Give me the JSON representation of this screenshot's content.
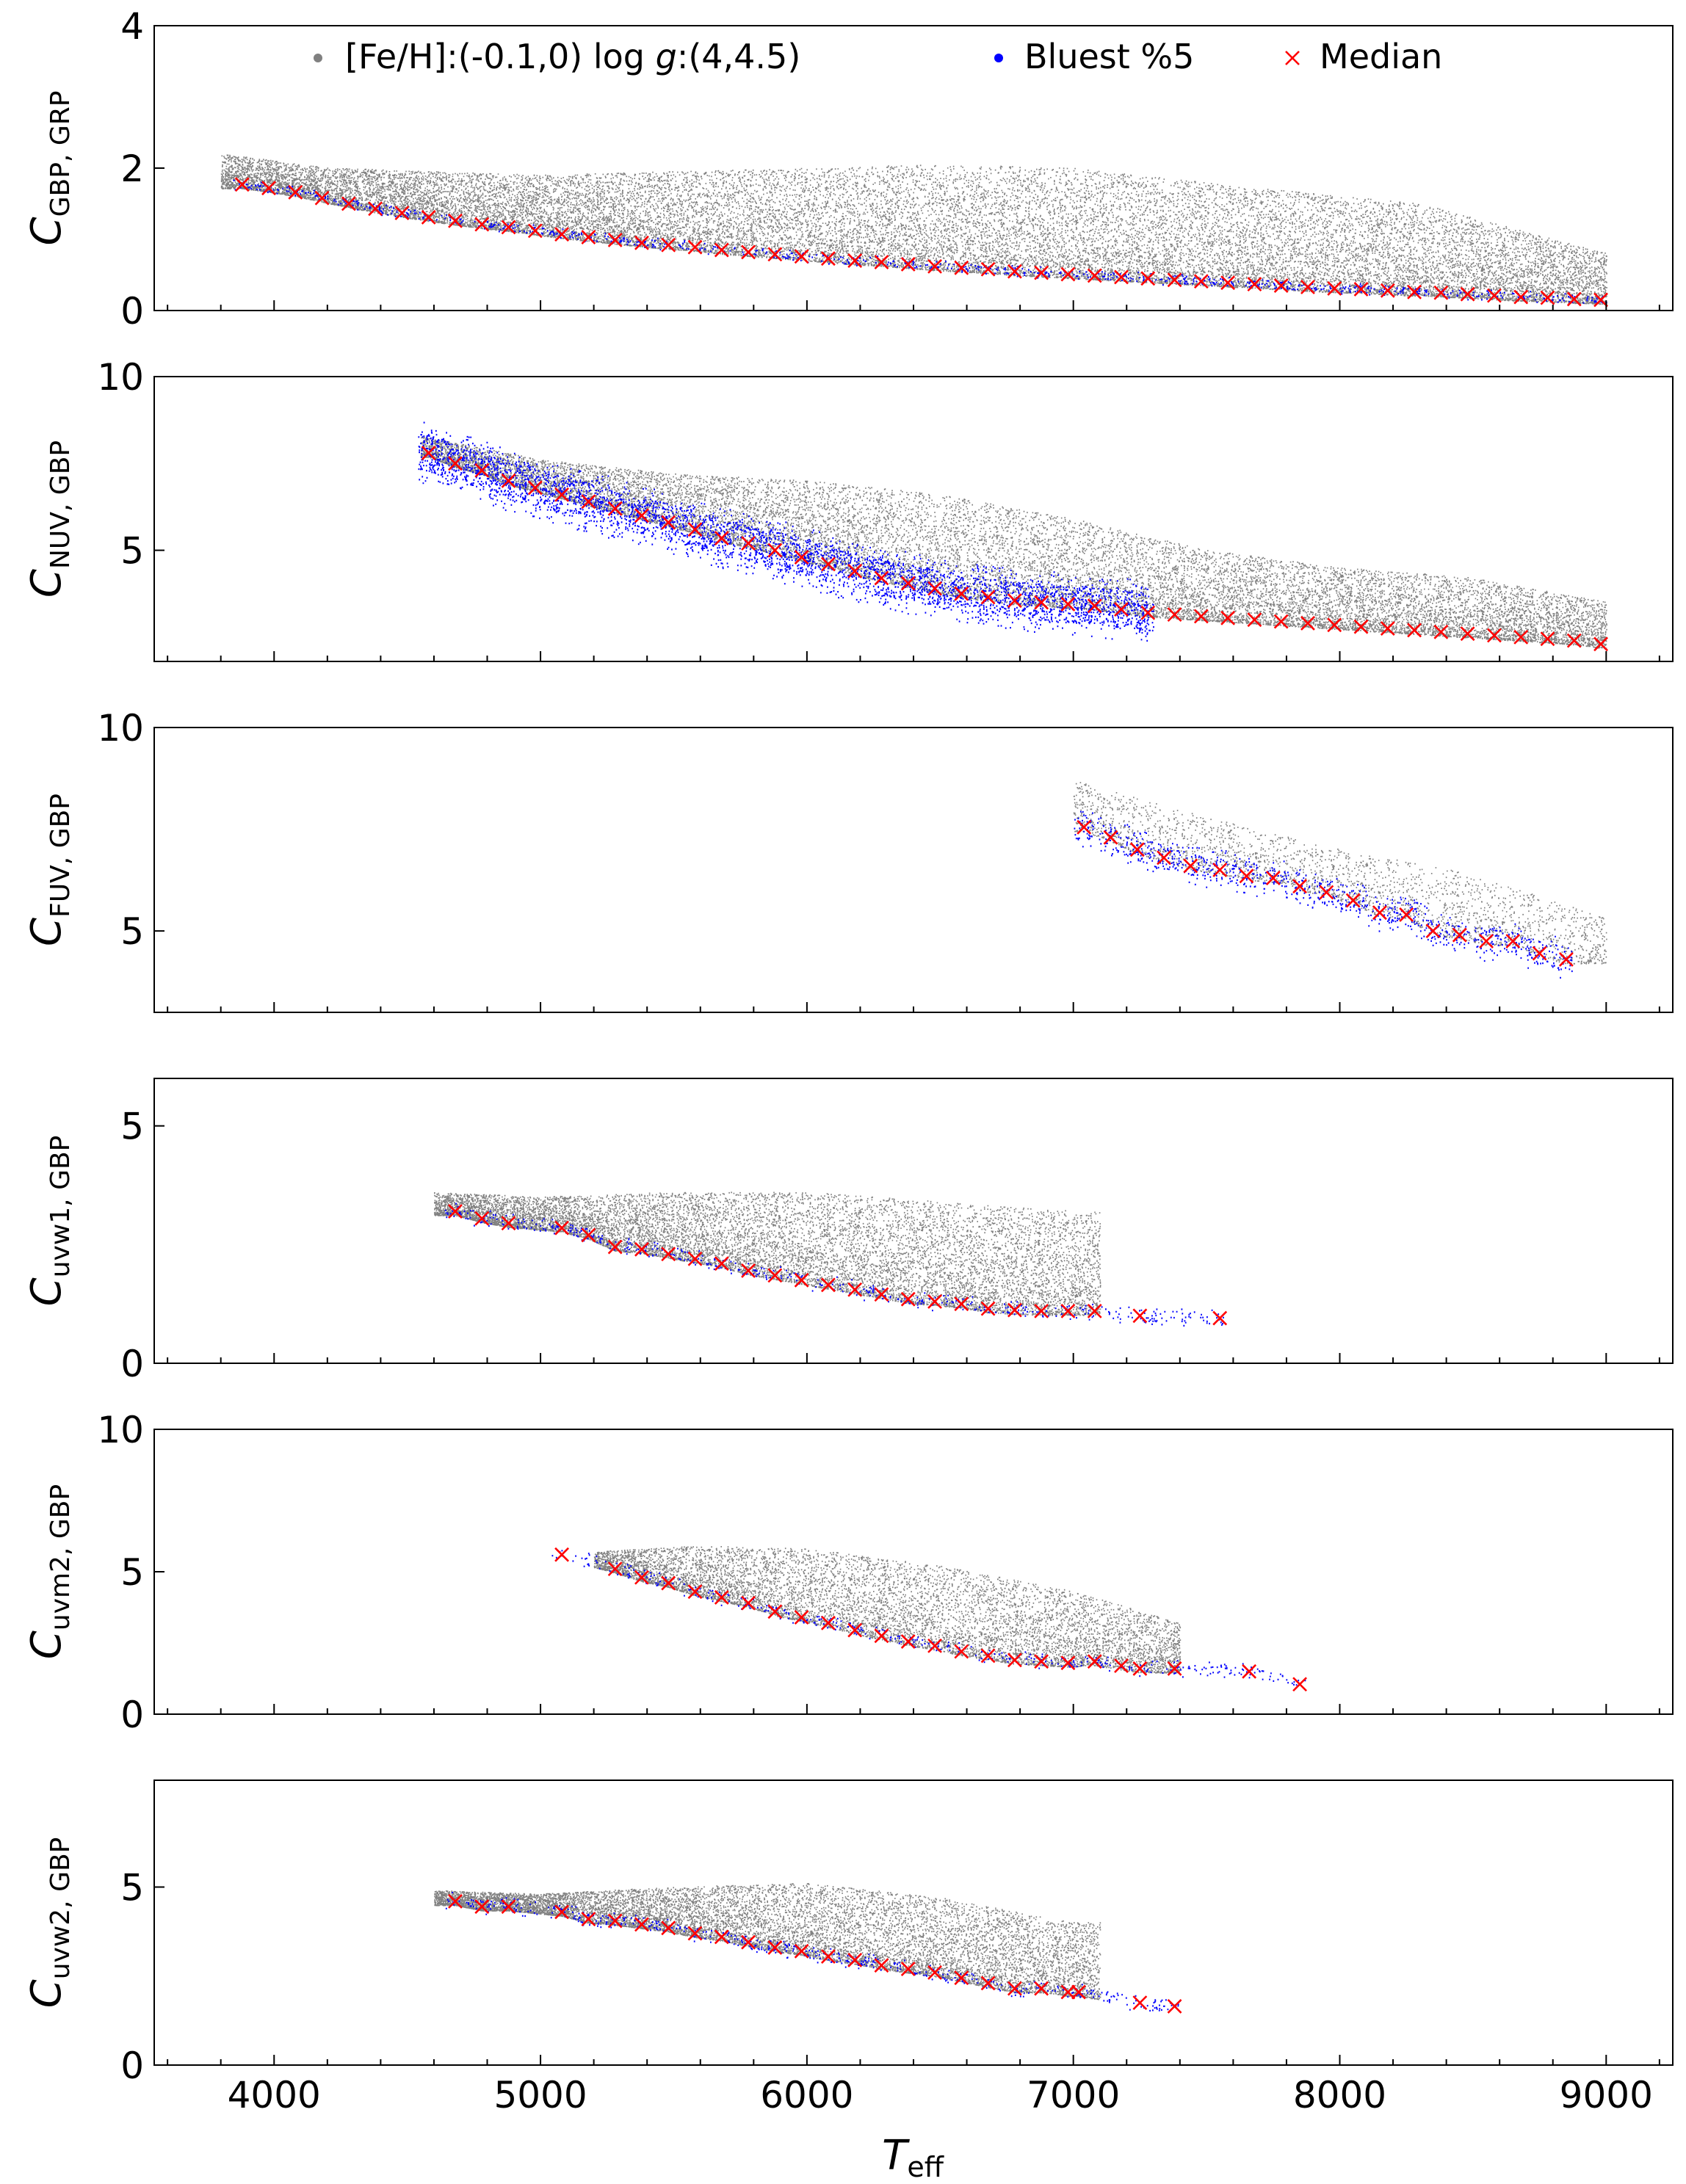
{
  "chart_data": {
    "type": "scatter",
    "xlabel": "T",
    "xlabel_sub": "eff",
    "xlim": [
      3550,
      9250
    ],
    "xticks": [
      4000,
      5000,
      6000,
      7000,
      8000,
      9000
    ],
    "xtick_labels": [
      "4000",
      "5000",
      "6000",
      "7000",
      "8000",
      "9000"
    ],
    "colors": {
      "all": "#808080",
      "bluest": "#0000ff",
      "median": "#ff0000"
    },
    "legend": {
      "placement": "top",
      "entries": [
        {
          "label_pre": "[Fe/H]:(-0.1,0) log ",
          "label_italic": "g",
          "label_post": ":(4,4.5)",
          "marker": "dot",
          "color": "#808080"
        },
        {
          "label": "Bluest %5",
          "marker": "dot",
          "color": "#0000ff"
        },
        {
          "label": "Median",
          "marker": "x",
          "color": "#ff0000"
        }
      ]
    },
    "panels": [
      {
        "ylabel_main": "C",
        "ylabel_sub": "GBP, GRP",
        "ylim": [
          0,
          4
        ],
        "yticks": [
          0,
          2,
          4
        ],
        "ytick_labels": [
          "0",
          "2",
          "4"
        ],
        "median": {
          "x": [
            3880,
            3980,
            4080,
            4180,
            4280,
            4380,
            4480,
            4580,
            4680,
            4780,
            4880,
            4980,
            5080,
            5180,
            5280,
            5380,
            5480,
            5580,
            5680,
            5780,
            5880,
            5980,
            6080,
            6180,
            6280,
            6380,
            6480,
            6580,
            6680,
            6780,
            6880,
            6980,
            7080,
            7180,
            7280,
            7380,
            7480,
            7580,
            7680,
            7780,
            7880,
            7980,
            8080,
            8180,
            8280,
            8380,
            8480,
            8580,
            8680,
            8780,
            8880,
            8980
          ],
          "y": [
            1.77,
            1.72,
            1.66,
            1.58,
            1.5,
            1.43,
            1.37,
            1.31,
            1.26,
            1.21,
            1.17,
            1.12,
            1.07,
            1.03,
            0.99,
            0.95,
            0.92,
            0.89,
            0.85,
            0.82,
            0.79,
            0.76,
            0.73,
            0.7,
            0.68,
            0.65,
            0.62,
            0.6,
            0.58,
            0.55,
            0.53,
            0.51,
            0.49,
            0.47,
            0.45,
            0.43,
            0.41,
            0.39,
            0.37,
            0.35,
            0.33,
            0.31,
            0.3,
            0.28,
            0.26,
            0.25,
            0.23,
            0.21,
            0.19,
            0.18,
            0.16,
            0.15
          ]
        },
        "scatter_all": {
          "x_range": [
            3800,
            9000
          ],
          "upper_envelope": [
            [
              3800,
              2.2
            ],
            [
              4200,
              2.0
            ],
            [
              5000,
              1.9
            ],
            [
              6000,
              2.0
            ],
            [
              6500,
              2.05
            ],
            [
              7000,
              2.0
            ],
            [
              7600,
              1.75
            ],
            [
              8300,
              1.5
            ],
            [
              9000,
              0.8
            ]
          ],
          "n": 22000
        },
        "bluest": {
          "band": 0.08,
          "n": 900
        }
      },
      {
        "ylabel_main": "C",
        "ylabel_sub": "NUV, GBP",
        "ylim": [
          1.8,
          10
        ],
        "yticks": [
          5,
          10
        ],
        "ytick_labels": [
          "5",
          "10"
        ],
        "median": {
          "x": [
            4580,
            4680,
            4780,
            4880,
            4980,
            5080,
            5180,
            5280,
            5380,
            5480,
            5580,
            5680,
            5780,
            5880,
            5980,
            6080,
            6180,
            6280,
            6380,
            6480,
            6580,
            6680,
            6780,
            6880,
            6980,
            7080,
            7180,
            7280,
            7380,
            7480,
            7580,
            7680,
            7780,
            7880,
            7980,
            8080,
            8180,
            8280,
            8380,
            8480,
            8580,
            8680,
            8780,
            8880,
            8980
          ],
          "y": [
            7.8,
            7.5,
            7.3,
            7.0,
            6.8,
            6.6,
            6.4,
            6.2,
            6.0,
            5.8,
            5.6,
            5.35,
            5.2,
            5.0,
            4.8,
            4.6,
            4.4,
            4.2,
            4.05,
            3.9,
            3.75,
            3.65,
            3.55,
            3.5,
            3.45,
            3.4,
            3.3,
            3.2,
            3.15,
            3.1,
            3.05,
            3.0,
            2.95,
            2.9,
            2.85,
            2.8,
            2.75,
            2.7,
            2.65,
            2.6,
            2.55,
            2.5,
            2.45,
            2.4,
            2.3
          ]
        },
        "scatter_all": {
          "x_range": [
            4550,
            9000
          ],
          "upper_envelope": [
            [
              4550,
              8.3
            ],
            [
              5000,
              7.6
            ],
            [
              5500,
              7.2
            ],
            [
              6000,
              7.0
            ],
            [
              6500,
              6.6
            ],
            [
              7000,
              5.9
            ],
            [
              7500,
              5.0
            ],
            [
              8000,
              4.5
            ],
            [
              8500,
              4.2
            ],
            [
              9000,
              3.5
            ]
          ],
          "n": 16000
        },
        "bluest": {
          "band": 0.9,
          "x_max": 7300,
          "n": 4000
        }
      },
      {
        "ylabel_main": "C",
        "ylabel_sub": "FUV, GBP",
        "ylim": [
          3,
          10
        ],
        "yticks": [
          5,
          10
        ],
        "ytick_labels": [
          "5",
          "10"
        ],
        "median": {
          "x": [
            7040,
            7140,
            7240,
            7340,
            7440,
            7550,
            7650,
            7750,
            7850,
            7950,
            8050,
            8150,
            8250,
            8350,
            8450,
            8550,
            8650,
            8750,
            8850
          ],
          "y": [
            7.55,
            7.3,
            7.0,
            6.8,
            6.6,
            6.5,
            6.35,
            6.3,
            6.1,
            5.95,
            5.75,
            5.45,
            5.4,
            5.0,
            4.9,
            4.75,
            4.75,
            4.45,
            4.3
          ]
        },
        "scatter_all": {
          "x_range": [
            7000,
            9000
          ],
          "upper_envelope": [
            [
              7000,
              8.7
            ],
            [
              7500,
              7.8
            ],
            [
              8000,
              7.0
            ],
            [
              8500,
              6.4
            ],
            [
              9000,
              5.3
            ]
          ],
          "n": 2500
        },
        "bluest": {
          "band": 0.5,
          "n": 900
        }
      },
      {
        "ylabel_main": "C",
        "ylabel_sub": "uvw1, GBP",
        "ylim": [
          0,
          6
        ],
        "yticks": [
          0,
          5
        ],
        "ytick_labels": [
          "0",
          "5"
        ],
        "median": {
          "x": [
            4680,
            4780,
            4880,
            5080,
            5180,
            5280,
            5380,
            5480,
            5580,
            5680,
            5780,
            5880,
            5980,
            6080,
            6180,
            6280,
            6380,
            6480,
            6580,
            6680,
            6780,
            6880,
            6980,
            7080,
            7250,
            7550
          ],
          "y": [
            3.2,
            3.05,
            2.95,
            2.85,
            2.7,
            2.45,
            2.4,
            2.3,
            2.2,
            2.1,
            1.95,
            1.85,
            1.75,
            1.65,
            1.55,
            1.45,
            1.35,
            1.3,
            1.25,
            1.15,
            1.12,
            1.1,
            1.1,
            1.1,
            1.0,
            0.95
          ]
        },
        "scatter_all": {
          "x_range": [
            4600,
            7100
          ],
          "upper_envelope": [
            [
              4600,
              3.6
            ],
            [
              5000,
              3.5
            ],
            [
              5500,
              3.6
            ],
            [
              6000,
              3.6
            ],
            [
              6500,
              3.4
            ],
            [
              7000,
              3.2
            ]
          ],
          "n": 11000
        },
        "bluest": {
          "band": 0.2,
          "n": 500
        }
      },
      {
        "ylabel_main": "C",
        "ylabel_sub": "uvm2, GBP",
        "ylim": [
          0,
          10
        ],
        "yticks": [
          0,
          5,
          10
        ],
        "ytick_labels": [
          "0",
          "5",
          "10"
        ],
        "median": {
          "x": [
            5080,
            5280,
            5380,
            5480,
            5580,
            5680,
            5780,
            5880,
            5980,
            6080,
            6180,
            6280,
            6380,
            6480,
            6580,
            6680,
            6780,
            6880,
            6980,
            7080,
            7180,
            7250,
            7380,
            7660,
            7850
          ],
          "y": [
            5.6,
            5.1,
            4.8,
            4.6,
            4.3,
            4.1,
            3.9,
            3.6,
            3.4,
            3.2,
            2.95,
            2.75,
            2.55,
            2.4,
            2.2,
            2.05,
            1.9,
            1.85,
            1.8,
            1.85,
            1.7,
            1.6,
            1.6,
            1.5,
            1.05
          ]
        },
        "scatter_all": {
          "x_range": [
            5200,
            7400
          ],
          "upper_envelope": [
            [
              5200,
              5.7
            ],
            [
              5600,
              5.9
            ],
            [
              6000,
              5.8
            ],
            [
              6500,
              5.2
            ],
            [
              7000,
              4.3
            ],
            [
              7400,
              3.2
            ]
          ],
          "n": 8000
        },
        "bluest": {
          "band": 0.3,
          "n": 400
        }
      },
      {
        "ylabel_main": "C",
        "ylabel_sub": "uvw2, GBP",
        "ylim": [
          0,
          8
        ],
        "yticks": [
          0,
          5
        ],
        "ytick_labels": [
          "0",
          "5"
        ],
        "median": {
          "x": [
            4680,
            4780,
            4880,
            5080,
            5180,
            5280,
            5380,
            5480,
            5580,
            5680,
            5780,
            5880,
            5980,
            6080,
            6180,
            6280,
            6380,
            6480,
            6580,
            6680,
            6780,
            6880,
            6980,
            7020,
            7250,
            7380
          ],
          "y": [
            4.6,
            4.45,
            4.45,
            4.3,
            4.1,
            4.05,
            3.95,
            3.85,
            3.7,
            3.6,
            3.45,
            3.3,
            3.2,
            3.05,
            2.95,
            2.8,
            2.7,
            2.6,
            2.45,
            2.3,
            2.15,
            2.15,
            2.05,
            2.05,
            1.75,
            1.65
          ]
        },
        "scatter_all": {
          "x_range": [
            4600,
            7100
          ],
          "upper_envelope": [
            [
              4600,
              4.9
            ],
            [
              5000,
              4.8
            ],
            [
              5500,
              5.0
            ],
            [
              6000,
              5.1
            ],
            [
              6500,
              4.7
            ],
            [
              7000,
              4.0
            ]
          ],
          "n": 11000
        },
        "bluest": {
          "band": 0.25,
          "n": 500
        }
      }
    ]
  }
}
